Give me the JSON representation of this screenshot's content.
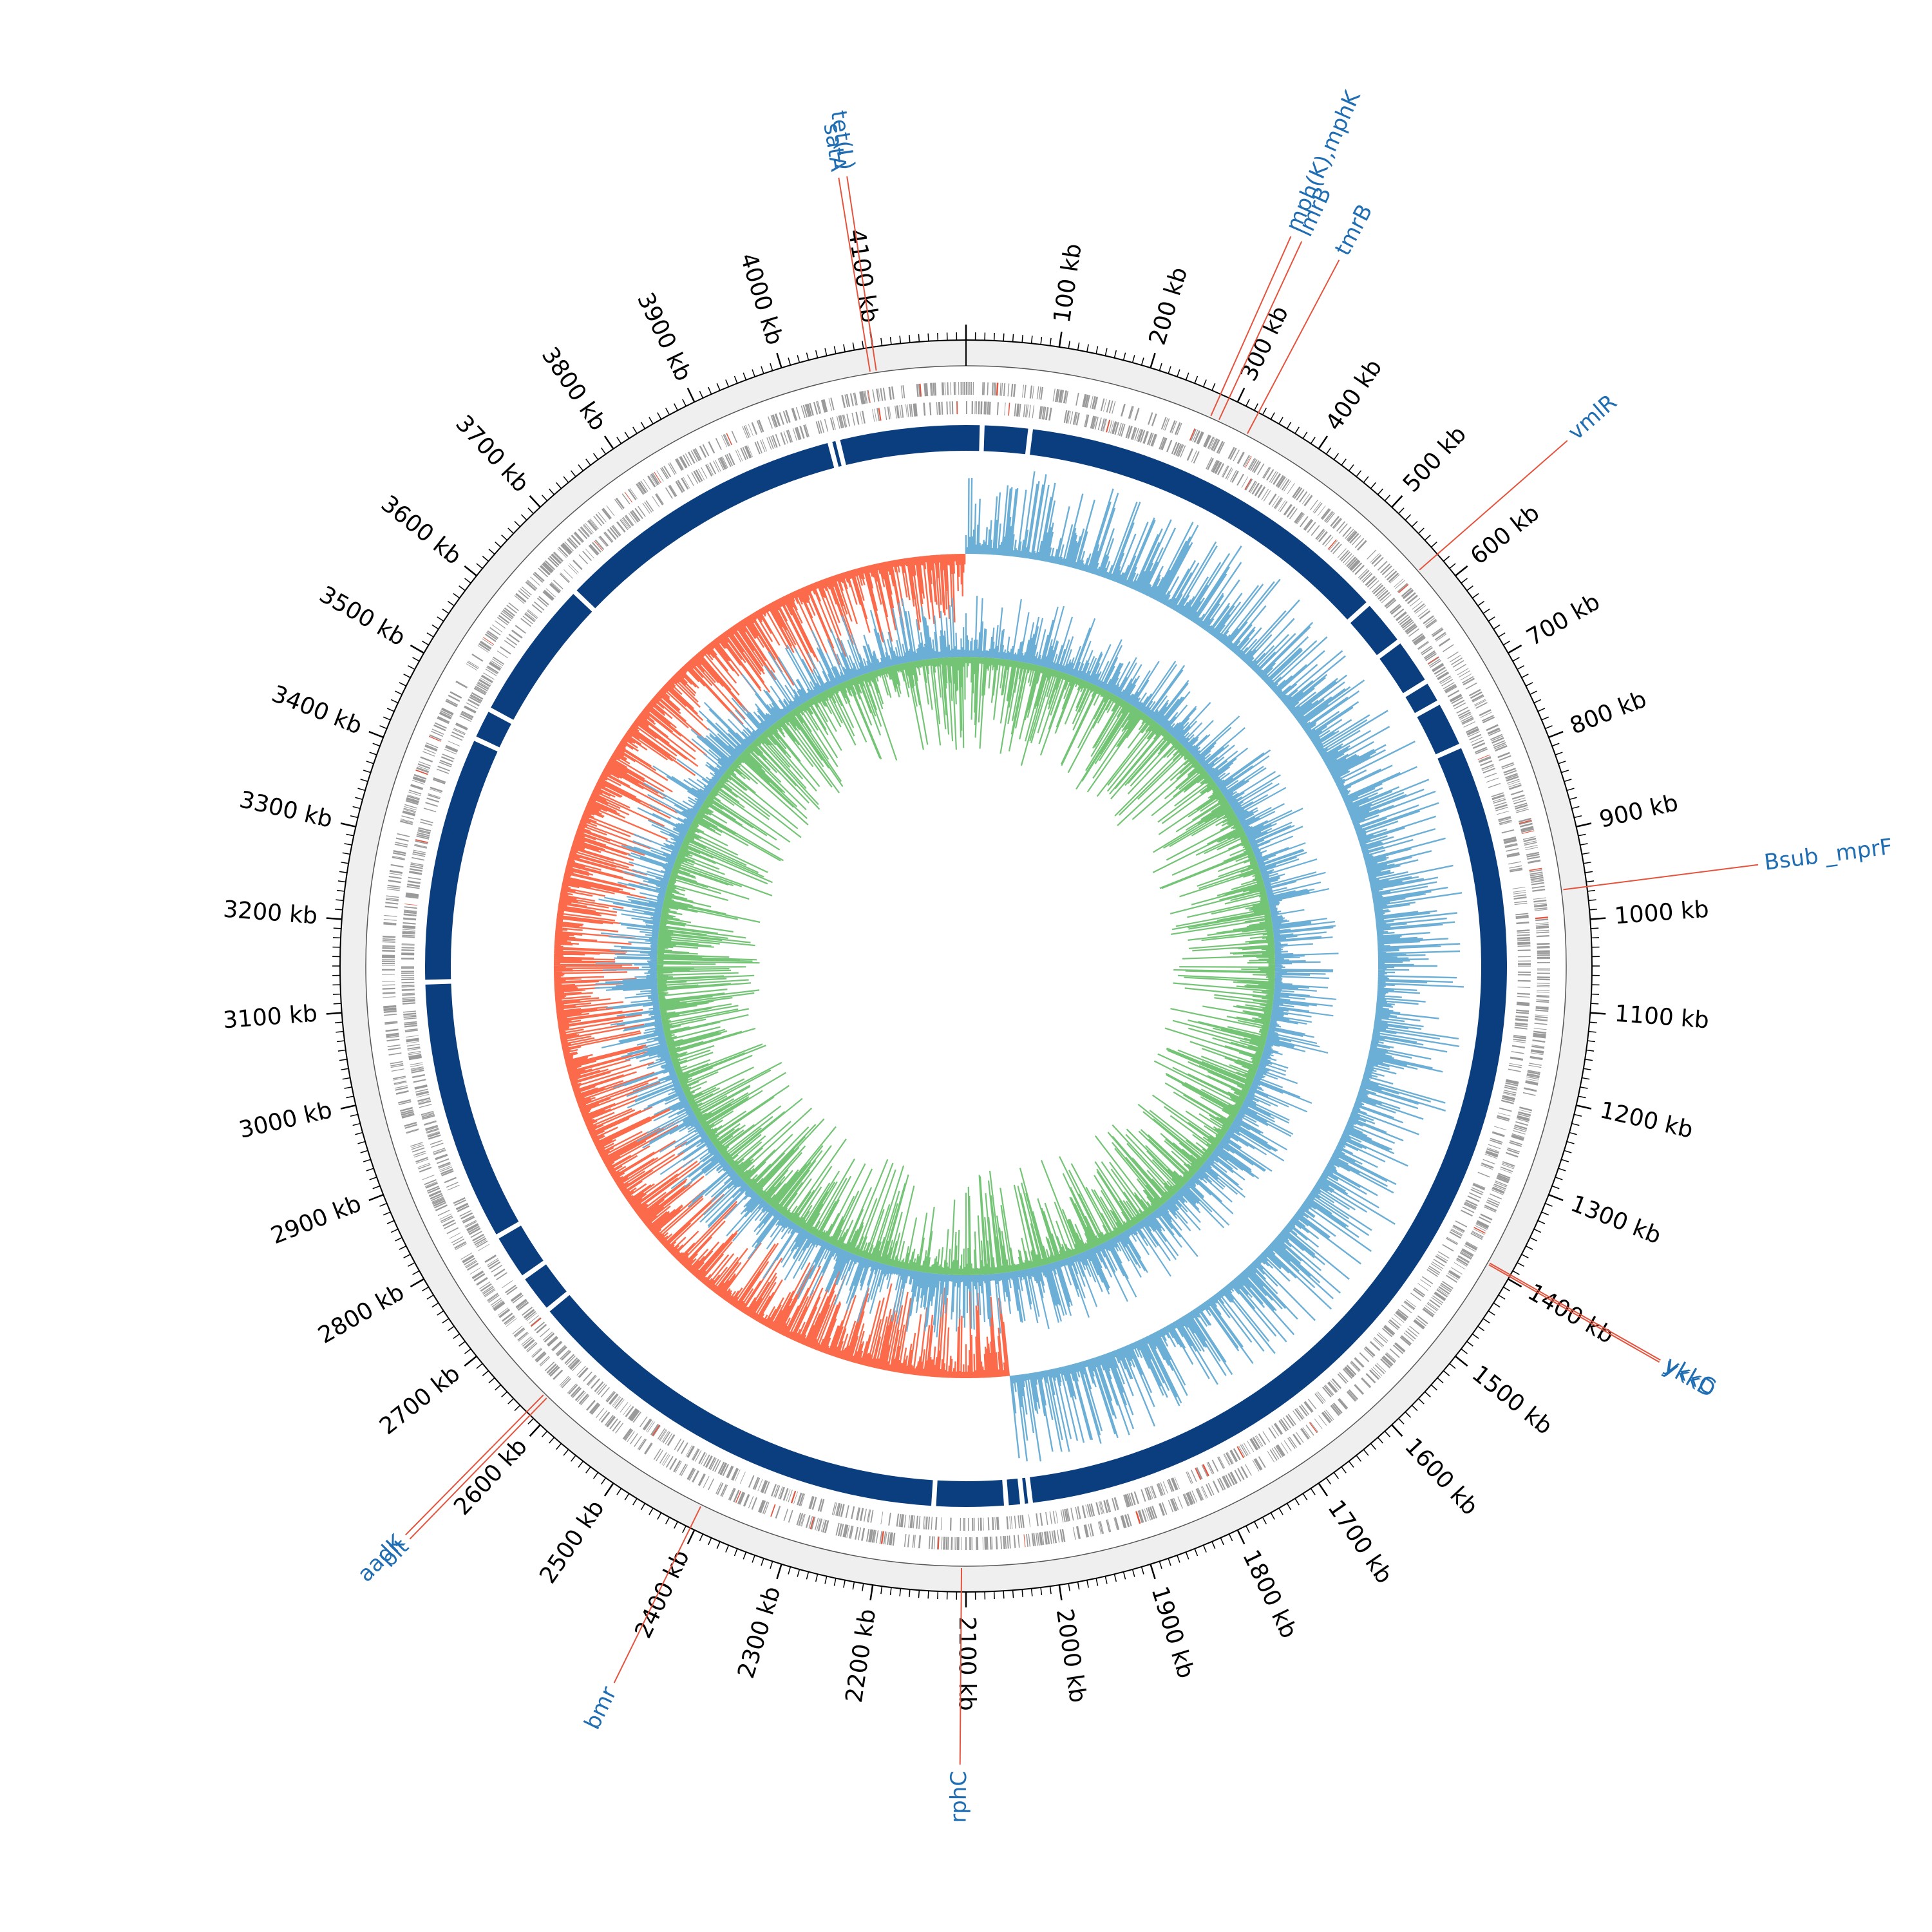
{
  "colors": {
    "backbone": "#0b3e7f",
    "cds": "#9a9a9a",
    "gc_content_positive": "#6baed6",
    "gc_content_negative": "#fb6a4a",
    "gc_skew_positive": "#6baed6",
    "gc_skew_negative": "#74c476",
    "gene_label": "#1f6db3",
    "gene_marker": "#e5533d",
    "scale_band": "#efefef"
  },
  "genome": {
    "length_kb": 4200
  },
  "scale": {
    "tick_labels": [
      {
        "kb": 100,
        "text": "100 kb"
      },
      {
        "kb": 200,
        "text": "200 kb"
      },
      {
        "kb": 300,
        "text": "300 kb"
      },
      {
        "kb": 400,
        "text": "400 kb"
      },
      {
        "kb": 500,
        "text": "500 kb"
      },
      {
        "kb": 600,
        "text": "600 kb"
      },
      {
        "kb": 700,
        "text": "700 kb"
      },
      {
        "kb": 800,
        "text": "800 kb"
      },
      {
        "kb": 900,
        "text": "900 kb"
      },
      {
        "kb": 1000,
        "text": "1000 kb"
      },
      {
        "kb": 1100,
        "text": "1100 kb"
      },
      {
        "kb": 1200,
        "text": "1200 kb"
      },
      {
        "kb": 1300,
        "text": "1300 kb"
      },
      {
        "kb": 1400,
        "text": "1400 kb"
      },
      {
        "kb": 1500,
        "text": "1500 kb"
      },
      {
        "kb": 1600,
        "text": "1600 kb"
      },
      {
        "kb": 1700,
        "text": "1700 kb"
      },
      {
        "kb": 1800,
        "text": "1800 kb"
      },
      {
        "kb": 1900,
        "text": "1900 kb"
      },
      {
        "kb": 2000,
        "text": "2000 kb"
      },
      {
        "kb": 2100,
        "text": "2100 kb"
      },
      {
        "kb": 2200,
        "text": "2200 kb"
      },
      {
        "kb": 2300,
        "text": "2300 kb"
      },
      {
        "kb": 2400,
        "text": "2400 kb"
      },
      {
        "kb": 2500,
        "text": "2500 kb"
      },
      {
        "kb": 2600,
        "text": "2600 kb"
      },
      {
        "kb": 2700,
        "text": "2700 kb"
      },
      {
        "kb": 2800,
        "text": "2800 kb"
      },
      {
        "kb": 2900,
        "text": "2900 kb"
      },
      {
        "kb": 3000,
        "text": "3000 kb"
      },
      {
        "kb": 3100,
        "text": "3100 kb"
      },
      {
        "kb": 3200,
        "text": "3200 kb"
      },
      {
        "kb": 3300,
        "text": "3300 kb"
      },
      {
        "kb": 3400,
        "text": "3400 kb"
      },
      {
        "kb": 3500,
        "text": "3500 kb"
      },
      {
        "kb": 3600,
        "text": "3600 kb"
      },
      {
        "kb": 3700,
        "text": "3700 kb"
      },
      {
        "kb": 3800,
        "text": "3800 kb"
      },
      {
        "kb": 3900,
        "text": "3900 kb"
      },
      {
        "kb": 4000,
        "text": "4000 kb"
      },
      {
        "kb": 4100,
        "text": "4100 kb"
      }
    ]
  },
  "backbone_gaps_kb": [
    20,
    80,
    560,
    620,
    680,
    710,
    770,
    2020,
    2030,
    2050,
    2140,
    2690,
    2740,
    2800,
    3130,
    3440,
    3480,
    3660,
    4030,
    4040
  ],
  "genes": [
    {
      "name": "satA",
      "kb": 4093,
      "side": "top"
    },
    {
      "name": "tet(L)",
      "kb": 4100,
      "side": "top"
    },
    {
      "name": "mph(K),mphK",
      "kb": 280,
      "side": "top"
    },
    {
      "name": "lmrB",
      "kb": 290,
      "side": "top"
    },
    {
      "name": "tmrB",
      "kb": 325,
      "side": "top"
    },
    {
      "name": "vmlR",
      "kb": 570,
      "side": "right"
    },
    {
      "name": "Bsub _mprF",
      "kb": 965,
      "side": "right"
    },
    {
      "name": "ykkC",
      "kb": 1395,
      "side": "right"
    },
    {
      "name": "ykkD",
      "kb": 1397,
      "side": "right"
    },
    {
      "name": "rphC",
      "kb": 2105,
      "side": "bottom"
    },
    {
      "name": "bmr",
      "kb": 2405,
      "side": "left"
    },
    {
      "name": "aadK",
      "kb": 2620,
      "side": "left"
    },
    {
      "name": "blt",
      "kb": 2615,
      "side": "left"
    }
  ]
}
